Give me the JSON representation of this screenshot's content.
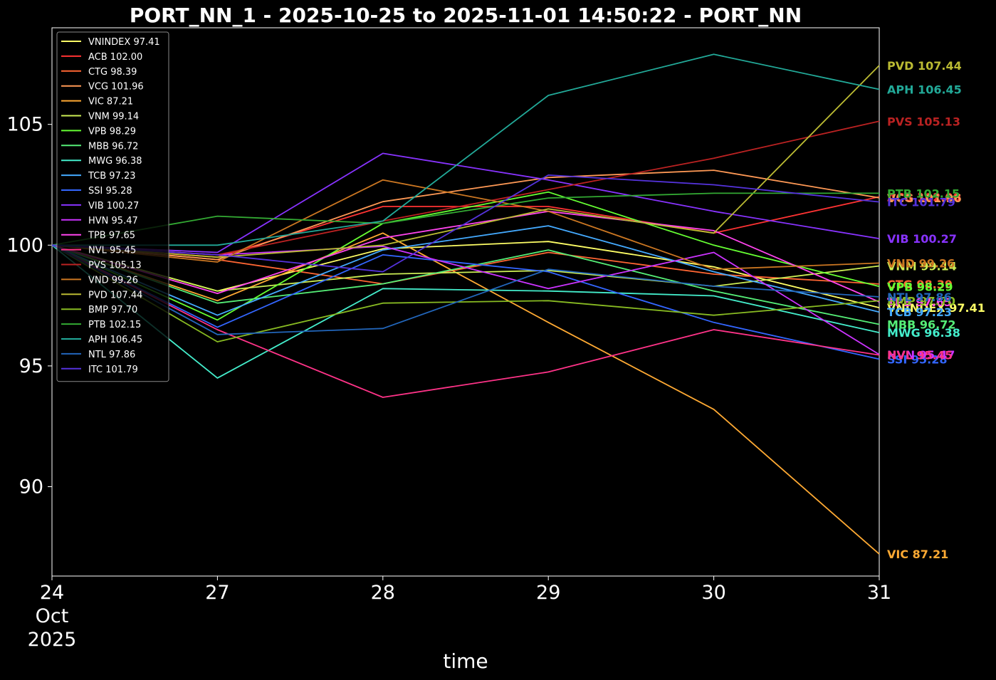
{
  "chart_data": {
    "type": "line",
    "title": "PORT_NN_1 - 2025-10-25 to 2025-11-01 14:50:22 - PORT_NN",
    "xlabel": "time",
    "ylabel": "",
    "x": [
      "2025-10-24",
      "2025-10-27",
      "2025-10-28",
      "2025-10-29",
      "2025-10-30",
      "2025-10-31"
    ],
    "x_tick_labels": [
      [
        "24",
        "Oct",
        "2025"
      ],
      [
        "27"
      ],
      [
        "28"
      ],
      [
        "29"
      ],
      [
        "30"
      ],
      [
        "31"
      ]
    ],
    "y_ticks": [
      90,
      95,
      100,
      105
    ],
    "ylim": [
      86.3,
      109.0
    ],
    "grid": false,
    "legend_position": "upper-left",
    "series": [
      {
        "name": "VNINDEX",
        "label": "VNINDEX 97.41",
        "end_label": "VNINDEX 97.41",
        "color": "#ffff66",
        "values": [
          100,
          98.1,
          99.85,
          100.15,
          99.1,
          97.41
        ]
      },
      {
        "name": "ACB",
        "label": "ACB 102.00",
        "end_label": "ACB 102.00",
        "color": "#ff3333",
        "values": [
          100,
          99.5,
          101.6,
          101.6,
          100.5,
          102.0
        ]
      },
      {
        "name": "CTG",
        "label": "CTG 98.39",
        "end_label": "CTG 98.39",
        "color": "#ff6633",
        "values": [
          100,
          99.4,
          98.4,
          99.7,
          98.8,
          98.39
        ]
      },
      {
        "name": "VCG",
        "label": "VCG 101.96",
        "end_label": "VCG 101.96",
        "color": "#ff9955",
        "values": [
          100,
          99.4,
          101.8,
          102.8,
          103.1,
          101.96
        ]
      },
      {
        "name": "VIC",
        "label": "VIC 87.21",
        "end_label": "VIC 87.21",
        "color": "#ffaa33",
        "values": [
          100,
          97.7,
          100.5,
          96.8,
          93.2,
          87.21
        ]
      },
      {
        "name": "VNM",
        "label": "VNM 99.14",
        "end_label": "VNM 99.14",
        "color": "#ccee55",
        "values": [
          100,
          98.1,
          98.8,
          98.95,
          98.3,
          99.14
        ]
      },
      {
        "name": "VPB",
        "label": "VPB 98.29",
        "end_label": "VPB 98.29",
        "color": "#66ff33",
        "values": [
          100,
          96.9,
          100.9,
          102.2,
          100.0,
          98.29
        ]
      },
      {
        "name": "MBB",
        "label": "MBB 96.72",
        "end_label": "MBB 96.72",
        "color": "#55ee77",
        "values": [
          100,
          97.6,
          98.4,
          99.8,
          98.1,
          96.72
        ]
      },
      {
        "name": "MWG",
        "label": "MWG 96.38",
        "end_label": "MWG 96.38",
        "color": "#44eecc",
        "values": [
          100,
          94.5,
          98.2,
          98.1,
          97.9,
          96.38
        ]
      },
      {
        "name": "TCB",
        "label": "TCB 97.23",
        "end_label": "TCB 97.23",
        "color": "#44aaff",
        "values": [
          100,
          97.1,
          99.8,
          100.8,
          98.9,
          97.23
        ]
      },
      {
        "name": "SSI",
        "label": "SSI 95.28",
        "end_label": "SSI 95.28",
        "color": "#3366ff",
        "values": [
          100,
          96.6,
          99.6,
          98.9,
          96.8,
          95.28
        ]
      },
      {
        "name": "VIB",
        "label": "VIB 100.27",
        "end_label": "VIB 100.27",
        "color": "#8833ff",
        "values": [
          100,
          99.7,
          103.8,
          102.7,
          101.4,
          100.27
        ]
      },
      {
        "name": "HVN",
        "label": "HVN 95.47",
        "end_label": "HVN 95.47",
        "color": "#cc33ff",
        "values": [
          100,
          99.6,
          99.95,
          98.2,
          99.7,
          95.47
        ]
      },
      {
        "name": "TPB",
        "label": "TPB 97.65",
        "end_label": "TPB 97.65",
        "color": "#ff44ee",
        "values": [
          100,
          98.0,
          100.3,
          101.4,
          100.6,
          97.65
        ]
      },
      {
        "name": "NVL",
        "label": "NVL 95.45",
        "end_label": "NVL 95.45",
        "color": "#ff3388",
        "values": [
          100,
          96.5,
          93.7,
          94.75,
          96.5,
          95.45
        ]
      },
      {
        "name": "PVS",
        "label": "PVS 105.13",
        "end_label": "PVS 105.13",
        "color": "#bb2222",
        "values": [
          100,
          99.6,
          101.0,
          102.3,
          103.6,
          105.13
        ]
      },
      {
        "name": "VND",
        "label": "VND 99.26",
        "end_label": "VND 99.26",
        "color": "#cc7722",
        "values": [
          100,
          99.3,
          102.7,
          101.4,
          99.0,
          99.26
        ]
      },
      {
        "name": "PVD",
        "label": "PVD 107.44",
        "end_label": "PVD 107.44",
        "color": "#bbbb33",
        "values": [
          100,
          99.5,
          100.0,
          101.5,
          100.5,
          107.44
        ]
      },
      {
        "name": "BMP",
        "label": "BMP 97.70",
        "end_label": "BMP 97.70",
        "color": "#88bb22",
        "values": [
          100,
          96.0,
          97.6,
          97.7,
          97.1,
          97.7
        ]
      },
      {
        "name": "PTB",
        "label": "PTB 102.15",
        "end_label": "PTB 102.15",
        "color": "#33aa33",
        "values": [
          100,
          101.2,
          100.9,
          101.95,
          102.15,
          102.15
        ]
      },
      {
        "name": "APH",
        "label": "APH 106.45",
        "end_label": "APH 106.45",
        "color": "#22aa99",
        "values": [
          100,
          100.0,
          101.0,
          106.2,
          107.9,
          106.45
        ]
      },
      {
        "name": "NTL",
        "label": "NTL 97.86",
        "end_label": "NTL 97.86",
        "color": "#2266bb",
        "values": [
          100,
          96.3,
          96.55,
          99.0,
          98.3,
          97.86
        ]
      },
      {
        "name": "ITC",
        "label": "ITC 101.79",
        "end_label": "ITC 101.79",
        "color": "#5533dd",
        "values": [
          100,
          99.6,
          98.9,
          102.9,
          102.5,
          101.79
        ]
      }
    ]
  }
}
